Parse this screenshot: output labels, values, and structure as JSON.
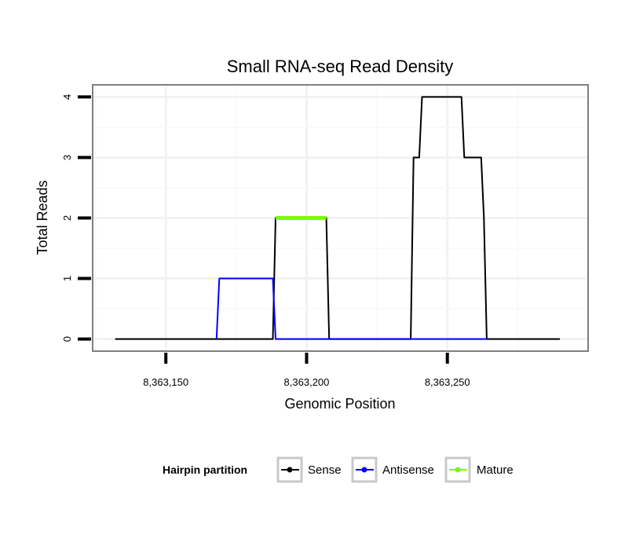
{
  "chart_data": {
    "type": "line",
    "title": "Small RNA-seq Read Density",
    "xlabel": "Genomic Position",
    "ylabel": "Total Reads",
    "xlim": [
      8363124,
      8363300
    ],
    "ylim": [
      -0.2,
      4.2
    ],
    "x_ticks": [
      8363150,
      8363200,
      8363250
    ],
    "x_tick_labels": [
      "8,363,150",
      "8,363,200",
      "8,363,250"
    ],
    "y_ticks": [
      0,
      1,
      2,
      3,
      4
    ],
    "y_tick_labels": [
      "0",
      "1",
      "2",
      "3",
      "4"
    ],
    "grid": true,
    "legend_position": "bottom",
    "legend_title": "Hairpin partition",
    "series": [
      {
        "name": "Sense",
        "color": "#000000",
        "points": [
          [
            8363132,
            0
          ],
          [
            8363188,
            0
          ],
          [
            8363189,
            2
          ],
          [
            8363207,
            2
          ],
          [
            8363208,
            0
          ],
          [
            8363237,
            0
          ],
          [
            8363238,
            3
          ],
          [
            8363240,
            3
          ],
          [
            8363241,
            4
          ],
          [
            8363255,
            4
          ],
          [
            8363256,
            3
          ],
          [
            8363262,
            3
          ],
          [
            8363263,
            2
          ],
          [
            8363264,
            0
          ],
          [
            8363290,
            0
          ]
        ]
      },
      {
        "name": "Antisense",
        "color": "#0000ff",
        "points": [
          [
            8363168,
            0
          ],
          [
            8363169,
            1
          ],
          [
            8363188,
            1
          ],
          [
            8363189,
            0
          ],
          [
            8363264,
            0
          ]
        ]
      },
      {
        "name": "Mature",
        "color": "#7cfc00",
        "points": [
          [
            8363189,
            2
          ],
          [
            8363207,
            2
          ]
        ]
      }
    ]
  }
}
